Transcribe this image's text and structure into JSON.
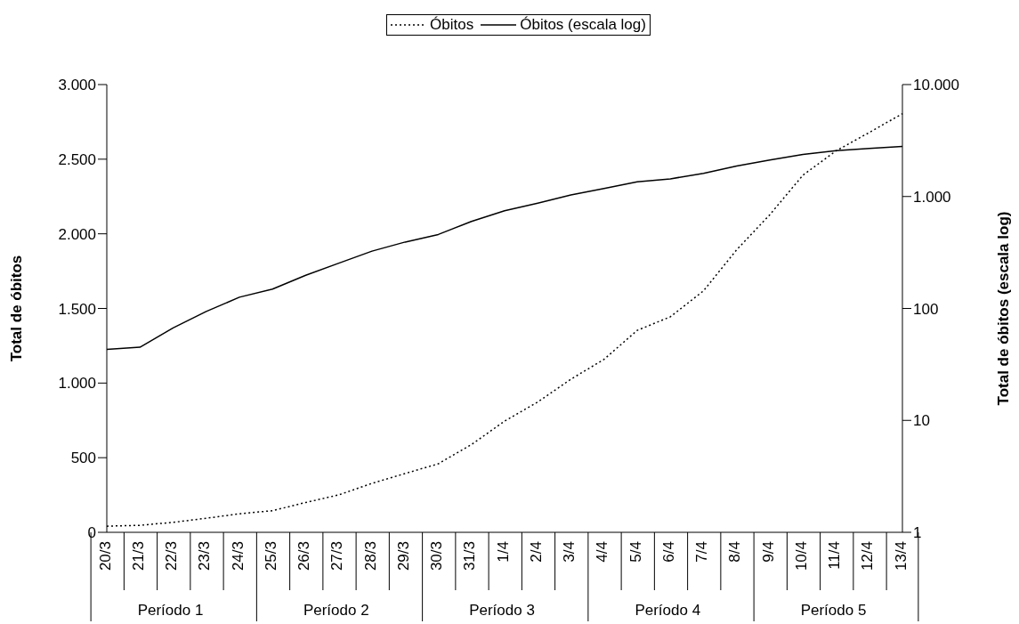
{
  "chart_data": {
    "type": "line",
    "categories": [
      "20/3",
      "21/3",
      "22/3",
      "23/3",
      "24/3",
      "25/3",
      "26/3",
      "27/3",
      "28/3",
      "29/3",
      "30/3",
      "31/3",
      "1/4",
      "2/4",
      "3/4",
      "4/4",
      "5/4",
      "6/4",
      "7/4",
      "8/4",
      "9/4",
      "10/4",
      "11/4",
      "12/4",
      "13/4"
    ],
    "series": [
      {
        "name": "Óbitos",
        "color": "#000000",
        "line_style": "dotted",
        "values": [
          41,
          47,
          67,
          94,
          124,
          145,
          200,
          251,
          328,
          394,
          459,
          588,
          745,
          873,
          1026,
          1159,
          1353,
          1444,
          1618,
          1893,
          2128,
          2393,
          2556,
          2679,
          2805
        ]
      },
      {
        "name": "Óbitos (escala log)",
        "color": "#000000",
        "line_style": "solid",
        "axis": "y2",
        "values": [
          43,
          45,
          67,
          94,
          126,
          149,
          198,
          254,
          325,
          392,
          458,
          599,
          746,
          872,
          1032,
          1177,
          1351,
          1438,
          1610,
          1871,
          2119,
          2371,
          2572,
          2686,
          2806
        ]
      }
    ],
    "ylabel": "Total de óbitos",
    "y2label": "Total de óbitos (escala log)",
    "ylim": [
      0,
      3000
    ],
    "yticks": [
      0,
      {
        "value": 500,
        "label": "500"
      },
      {
        "value": 1000,
        "label": "1.000"
      },
      {
        "value": 1500,
        "label": "1.500"
      },
      {
        "value": 2000,
        "label": "2.000"
      },
      {
        "value": 2500,
        "label": "2.500"
      },
      {
        "value": 3000,
        "label": "3.000"
      }
    ],
    "y2lim": [
      1,
      10000
    ],
    "y2ticks": [
      1,
      10,
      100,
      {
        "value": 1000,
        "label": "1.000"
      },
      {
        "value": 10000,
        "label": "10.000"
      }
    ],
    "log": "y2",
    "legend": "top",
    "marker": "none",
    "annotations": [
      "Período 1",
      "Período 2",
      "Período 3",
      "Período 4",
      "Período 5"
    ]
  }
}
